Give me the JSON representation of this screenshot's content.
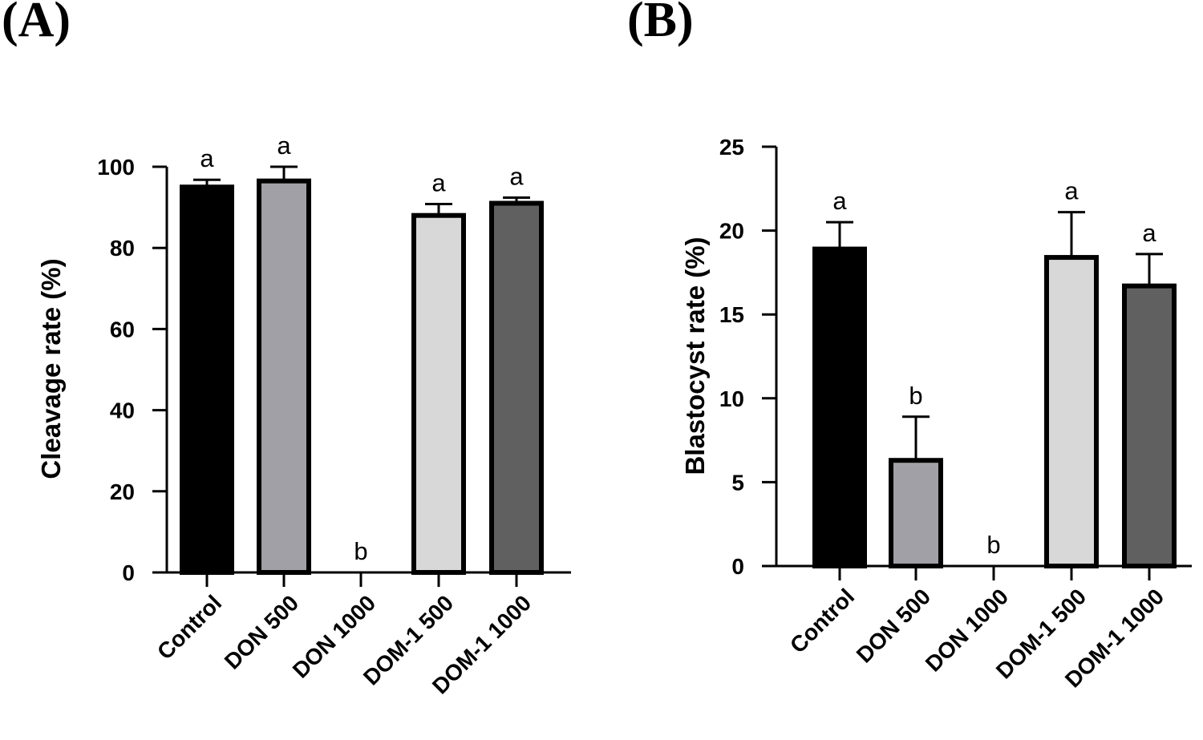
{
  "panels": [
    {
      "label": "(A)"
    },
    {
      "label": "(B)"
    }
  ],
  "chart_data": [
    {
      "type": "bar",
      "title": "",
      "xlabel": "",
      "ylabel": "Cleavage rate (%)",
      "ylim": [
        0,
        100
      ],
      "yticks": [
        0,
        20,
        40,
        60,
        80,
        100
      ],
      "categories": [
        "Control",
        "DON 500",
        "DON 1000",
        "DOM-1 500",
        "DOM-1 1000"
      ],
      "values": [
        95,
        96.5,
        0,
        88,
        91
      ],
      "errors": [
        1.8,
        3.5,
        0,
        2.8,
        1.4
      ],
      "significance": [
        "a",
        "a",
        "b",
        "a",
        "a"
      ],
      "bar_colors": [
        "#000000",
        "#a0a0a6",
        "#ffffff",
        "#d8d8d8",
        "#606060"
      ],
      "grid": false
    },
    {
      "type": "bar",
      "title": "",
      "xlabel": "",
      "ylabel": "Blastocyst rate (%)",
      "ylim": [
        0,
        25
      ],
      "yticks": [
        0,
        5,
        10,
        15,
        20,
        25
      ],
      "categories": [
        "Control",
        "DON 500",
        "DON 1000",
        "DOM-1 500",
        "DOM-1 1000"
      ],
      "values": [
        18.9,
        6.3,
        0,
        18.4,
        16.7
      ],
      "errors": [
        1.6,
        2.6,
        0,
        2.7,
        1.9
      ],
      "significance": [
        "a",
        "b",
        "b",
        "a",
        "a"
      ],
      "bar_colors": [
        "#000000",
        "#a0a0a6",
        "#ffffff",
        "#d8d8d8",
        "#606060"
      ],
      "grid": false
    }
  ]
}
